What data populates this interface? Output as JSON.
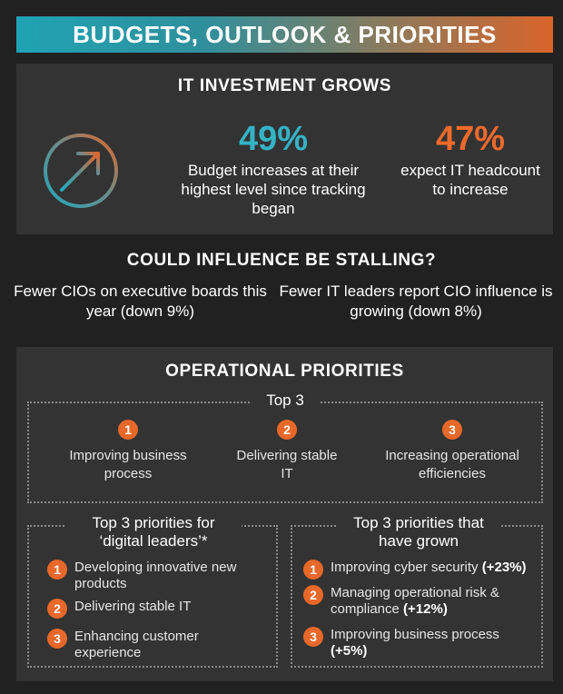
{
  "header": {
    "title": "BUDGETS, OUTLOOK & PRIORITIES"
  },
  "investment": {
    "title": "IT INVESTMENT GROWS",
    "icon": "arrow-up-right-icon",
    "stat_a": {
      "value": "49%",
      "text": "Budget increases at their highest level since tracking began",
      "color": "#35b3c6"
    },
    "stat_b": {
      "value": "47%",
      "text": "expect IT headcount to increase",
      "color": "#ee6a2b"
    }
  },
  "stalling": {
    "title": "COULD INFLUENCE BE STALLING?",
    "left": "Fewer CIOs on executive boards this year (down 9%)",
    "right": "Fewer IT leaders report CIO influence is growing (down 8%)"
  },
  "operational": {
    "title": "OPERATIONAL PRIORITIES",
    "top3": {
      "label": "Top 3",
      "items": [
        {
          "num": "1",
          "text": "Improving business process"
        },
        {
          "num": "2",
          "text": "Delivering stable IT"
        },
        {
          "num": "3",
          "text": "Increasing operational efficiencies"
        }
      ]
    },
    "digital": {
      "label": "Top 3 priorities for ‘digital leaders’*",
      "items": [
        {
          "num": "1",
          "text": "Developing innovative new products"
        },
        {
          "num": "2",
          "text": "Delivering stable IT"
        },
        {
          "num": "3",
          "text": "Enhancing customer experience"
        }
      ]
    },
    "grown": {
      "label": "Top 3 priorities that have grown",
      "items": [
        {
          "num": "1",
          "text": "Improving cyber security",
          "delta": "(+23%)"
        },
        {
          "num": "2",
          "text": "Managing operational risk & compliance",
          "delta": "(+12%)"
        },
        {
          "num": "3",
          "text": "Improving business process",
          "delta": "(+5%)"
        }
      ]
    }
  },
  "colors": {
    "accent_teal": "#35b3c6",
    "accent_orange": "#ee6a2b",
    "panel": "#333333",
    "background": "#212121"
  }
}
